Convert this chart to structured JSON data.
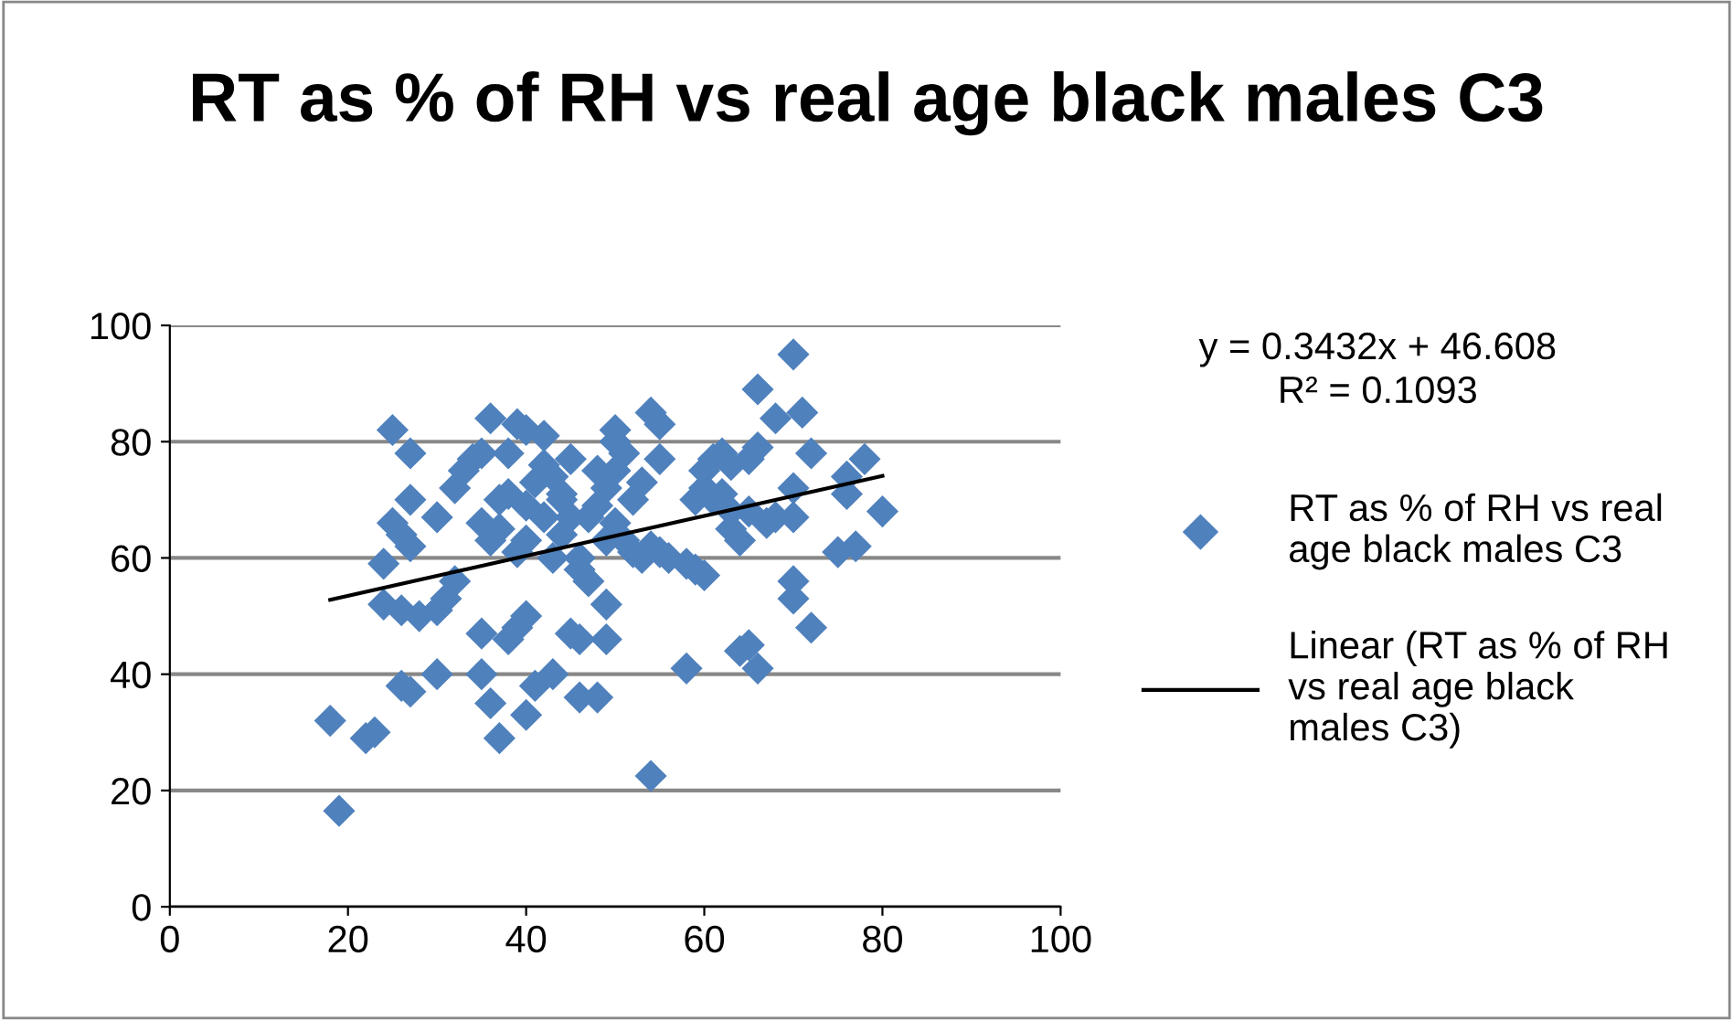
{
  "chart_data": {
    "type": "scatter",
    "title": "RT as % of RH vs real age black males C3",
    "annotations": [
      "y = 0.3432x + 46.608\nR² = 0.1093"
    ],
    "xlim": [
      0,
      100
    ],
    "xticks": [
      0,
      20,
      40,
      60,
      80,
      100
    ],
    "ylim": [
      0,
      100
    ],
    "yticks": [
      0,
      20,
      40,
      60,
      80,
      100
    ],
    "grid": "y",
    "legend": "right",
    "series": [
      {
        "name": "RT as % of RH vs real age black males C3",
        "marker": "diamond",
        "color": "#4f81bd",
        "x": [
          18,
          19,
          22,
          23,
          24,
          24,
          25,
          25,
          26,
          26,
          27,
          26,
          27,
          27,
          27,
          28,
          30,
          30,
          30,
          31,
          32,
          32,
          33,
          34,
          35,
          35,
          35,
          35,
          36,
          36,
          36,
          37,
          37,
          38,
          38,
          38,
          39,
          39,
          39,
          40,
          40,
          40,
          40,
          40,
          41,
          41,
          42,
          42,
          42,
          43,
          43,
          43,
          44,
          44,
          45,
          45,
          45,
          46,
          46,
          46,
          46,
          47,
          47,
          48,
          48,
          48,
          49,
          49,
          49,
          49,
          50,
          50,
          50,
          50,
          51,
          51,
          52,
          52,
          53,
          53,
          54,
          54,
          54,
          55,
          55,
          55,
          58,
          58,
          59,
          59,
          60,
          60,
          60,
          61,
          61,
          62,
          62,
          63,
          63,
          64,
          64,
          65,
          65,
          65,
          66,
          66,
          66,
          67,
          68,
          68,
          70,
          70,
          70,
          70,
          70,
          71,
          72,
          72,
          75,
          76,
          76,
          77,
          78,
          80,
          56,
          44,
          37,
          63
        ],
        "values": [
          32,
          16.5,
          29,
          30,
          59,
          52,
          82,
          66,
          64,
          38,
          37,
          51,
          70,
          78,
          62,
          50,
          67,
          40,
          51,
          53,
          72,
          56,
          75,
          77,
          78,
          66,
          47,
          40,
          84,
          63,
          35,
          29,
          65,
          78,
          46,
          71,
          83,
          61,
          48,
          50,
          33,
          82,
          69,
          63,
          73,
          38,
          81,
          76,
          67,
          74,
          40,
          60,
          70,
          71,
          67,
          47,
          77,
          46,
          36,
          60,
          58,
          56,
          67,
          75,
          36,
          69,
          52,
          46,
          72,
          63,
          80,
          75,
          82,
          66,
          78,
          63,
          70,
          61,
          73,
          60,
          85,
          22.5,
          62,
          83,
          77,
          61,
          41,
          59,
          58,
          70,
          72,
          75,
          57,
          70,
          77,
          78,
          71,
          76,
          65,
          63,
          44,
          77,
          45,
          68,
          89,
          41,
          79,
          66,
          84,
          67,
          95,
          56,
          53,
          72,
          67,
          85,
          78,
          48,
          61,
          74,
          71,
          62,
          77,
          68,
          60,
          64,
          70,
          68
        ]
      },
      {
        "name": "Linear (RT as % of RH vs real age black males C3)",
        "type": "line",
        "marker": "none",
        "color": "#000000",
        "x": [
          18,
          80
        ],
        "values": [
          52.8,
          74.1
        ]
      }
    ]
  }
}
